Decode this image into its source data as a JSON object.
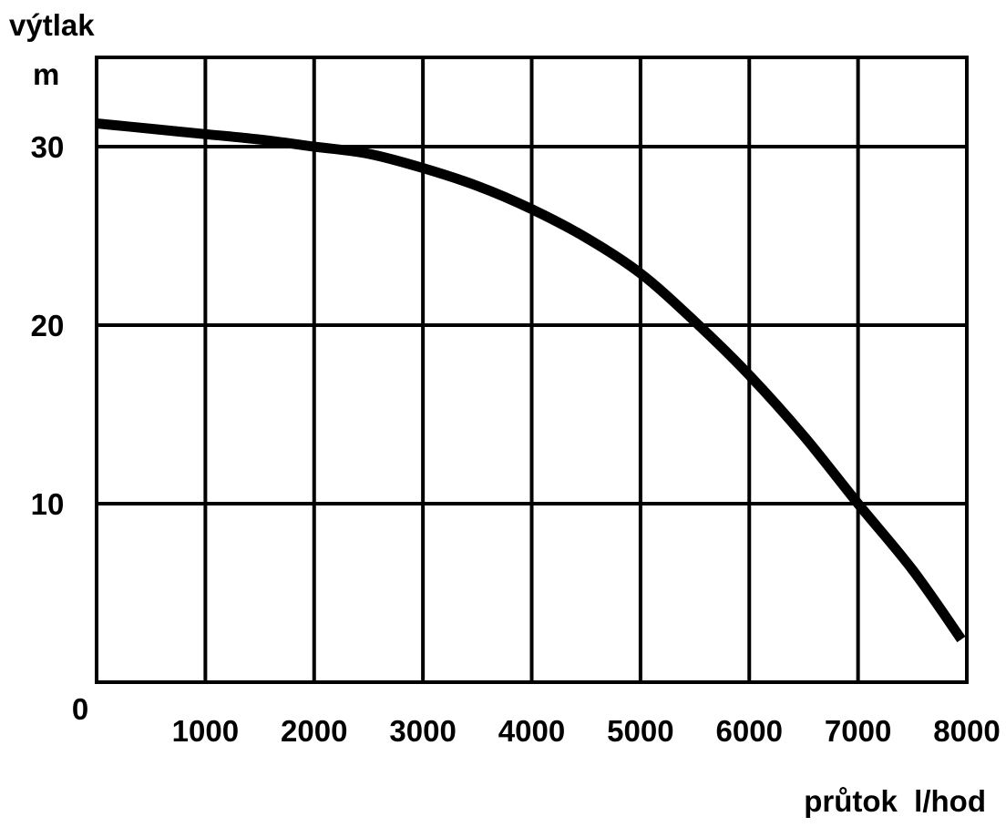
{
  "chart_data": {
    "type": "line",
    "title": "",
    "ylabel": "výtlak",
    "yunit": "m",
    "xlabel": "průtok  l/hod",
    "origin_label": "0",
    "xlim": [
      0,
      8000
    ],
    "ylim": [
      0,
      35
    ],
    "grid": true,
    "x_ticks": [
      1000,
      2000,
      3000,
      4000,
      5000,
      6000,
      7000,
      8000
    ],
    "x_tick_labels": [
      "1000",
      "2000",
      "3000",
      "4000",
      "5000",
      "6000",
      "7000",
      "8000"
    ],
    "y_ticks": [
      10,
      20,
      30
    ],
    "y_tick_labels": [
      "10",
      "20",
      "30"
    ],
    "series": [
      {
        "color": "#000000",
        "x": [
          0,
          500,
          1000,
          1500,
          2000,
          2500,
          3000,
          3500,
          4000,
          4500,
          5000,
          5500,
          6000,
          6500,
          7000,
          7500,
          7950
        ],
        "y": [
          31.3,
          31.0,
          30.7,
          30.4,
          30.0,
          29.6,
          28.8,
          27.8,
          26.5,
          24.9,
          22.9,
          20.2,
          17.2,
          13.8,
          10.0,
          6.3,
          2.4
        ]
      }
    ]
  }
}
